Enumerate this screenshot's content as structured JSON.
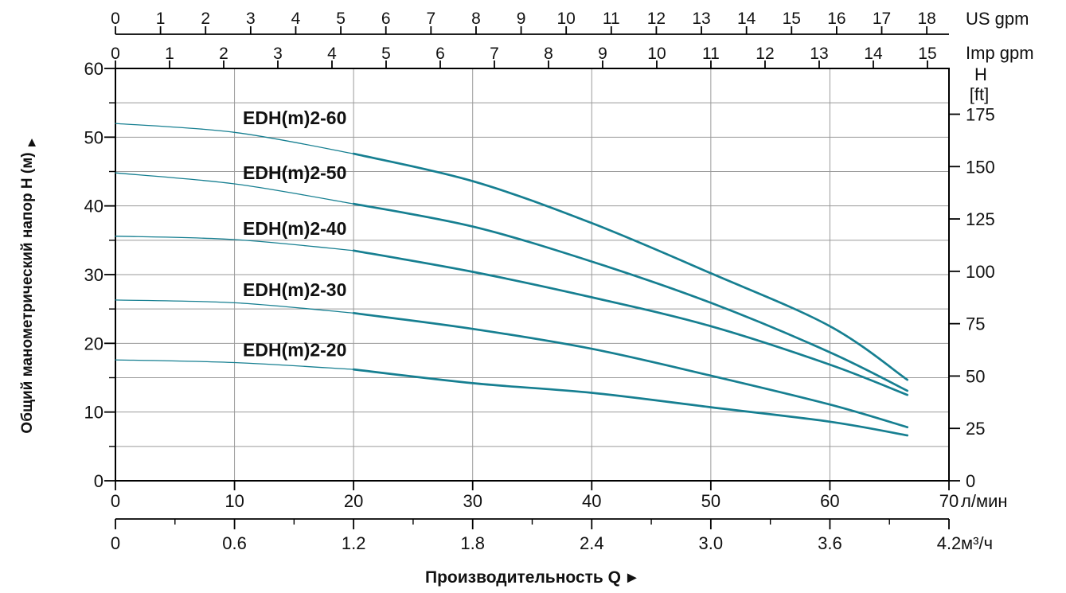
{
  "colors": {
    "curve": "#167f91",
    "grid": "#9a9a9a",
    "axis": "#000000",
    "text": "#111111",
    "background": "#ffffff"
  },
  "chart_data": {
    "type": "line",
    "title": "",
    "xlabel": "Производительность Q",
    "xlabel_arrow": "►",
    "axes": {
      "top_us": {
        "unit": "US gpm",
        "conv_to_lmin": 3.7854,
        "ticks": [
          0,
          1,
          2,
          3,
          4,
          5,
          6,
          7,
          8,
          9,
          10,
          11,
          12,
          13,
          14,
          15,
          16,
          17,
          18
        ]
      },
      "top_imp": {
        "unit": "Imp gpm",
        "conv_to_lmin": 4.5461,
        "ticks": [
          0,
          1,
          2,
          3,
          4,
          5,
          6,
          7,
          8,
          9,
          10,
          11,
          12,
          13,
          14,
          15
        ]
      },
      "bottom_lmin": {
        "unit": "л/мин",
        "min": 0,
        "max": 70,
        "ticks": [
          0,
          10,
          20,
          30,
          40,
          50,
          60,
          70
        ]
      },
      "bottom_m3h": {
        "unit": "м³/ч",
        "conv_to_lmin": 16.6667,
        "major_ticks": [
          0,
          0.6,
          1.2,
          1.8,
          2.4,
          3.0,
          3.6,
          4.2
        ],
        "minor_ticks": [
          0.3,
          0.9,
          1.5,
          2.1,
          2.7,
          3.3,
          3.9
        ]
      },
      "left_m": {
        "title": "Общий манометрический напор H (м)",
        "title_arrow": "▲",
        "min": 0,
        "max": 60,
        "major_ticks": [
          0,
          10,
          20,
          30,
          40,
          50,
          60
        ],
        "minor_step": 5,
        "grid_step": 5
      },
      "right_ft": {
        "unit_line1": "H",
        "unit_line2": "[ft]",
        "conv_to_m": 0.3048,
        "ticks": [
          0,
          25,
          50,
          75,
          100,
          125,
          150,
          175
        ]
      }
    },
    "series": [
      {
        "name": "EDH(m)2-60",
        "label_q": 10.7,
        "label_h": 51.9,
        "points": [
          [
            0,
            52.0
          ],
          [
            10,
            50.7
          ],
          [
            20,
            47.6
          ],
          [
            30,
            43.6
          ],
          [
            40,
            37.5
          ],
          [
            50,
            30.2
          ],
          [
            60,
            22.5
          ],
          [
            66.5,
            14.7
          ]
        ]
      },
      {
        "name": "EDH(m)2-50",
        "label_q": 10.7,
        "label_h": 43.9,
        "points": [
          [
            0,
            44.8
          ],
          [
            10,
            43.2
          ],
          [
            20,
            40.3
          ],
          [
            30,
            37.0
          ],
          [
            40,
            31.9
          ],
          [
            50,
            25.9
          ],
          [
            60,
            18.7
          ],
          [
            66.5,
            13.1
          ]
        ]
      },
      {
        "name": "EDH(m)2-40",
        "label_q": 10.7,
        "label_h": 35.8,
        "points": [
          [
            0,
            35.6
          ],
          [
            10,
            35.1
          ],
          [
            20,
            33.5
          ],
          [
            30,
            30.4
          ],
          [
            40,
            26.7
          ],
          [
            50,
            22.5
          ],
          [
            60,
            16.9
          ],
          [
            66.5,
            12.5
          ]
        ]
      },
      {
        "name": "EDH(m)2-30",
        "label_q": 10.7,
        "label_h": 26.9,
        "points": [
          [
            0,
            26.3
          ],
          [
            10,
            25.9
          ],
          [
            20,
            24.4
          ],
          [
            30,
            22.1
          ],
          [
            40,
            19.2
          ],
          [
            50,
            15.3
          ],
          [
            60,
            11.1
          ],
          [
            66.5,
            7.8
          ]
        ]
      },
      {
        "name": "EDH(m)2-20",
        "label_q": 10.7,
        "label_h": 18.1,
        "points": [
          [
            0,
            17.6
          ],
          [
            10,
            17.2
          ],
          [
            20,
            16.2
          ],
          [
            30,
            14.2
          ],
          [
            40,
            12.8
          ],
          [
            50,
            10.7
          ],
          [
            60,
            8.6
          ],
          [
            66.5,
            6.6
          ]
        ]
      }
    ],
    "x_range_lmin": [
      0,
      70
    ],
    "y_range_m": [
      0,
      60
    ],
    "grid": "on",
    "legend_position": "labels-on-curves"
  }
}
